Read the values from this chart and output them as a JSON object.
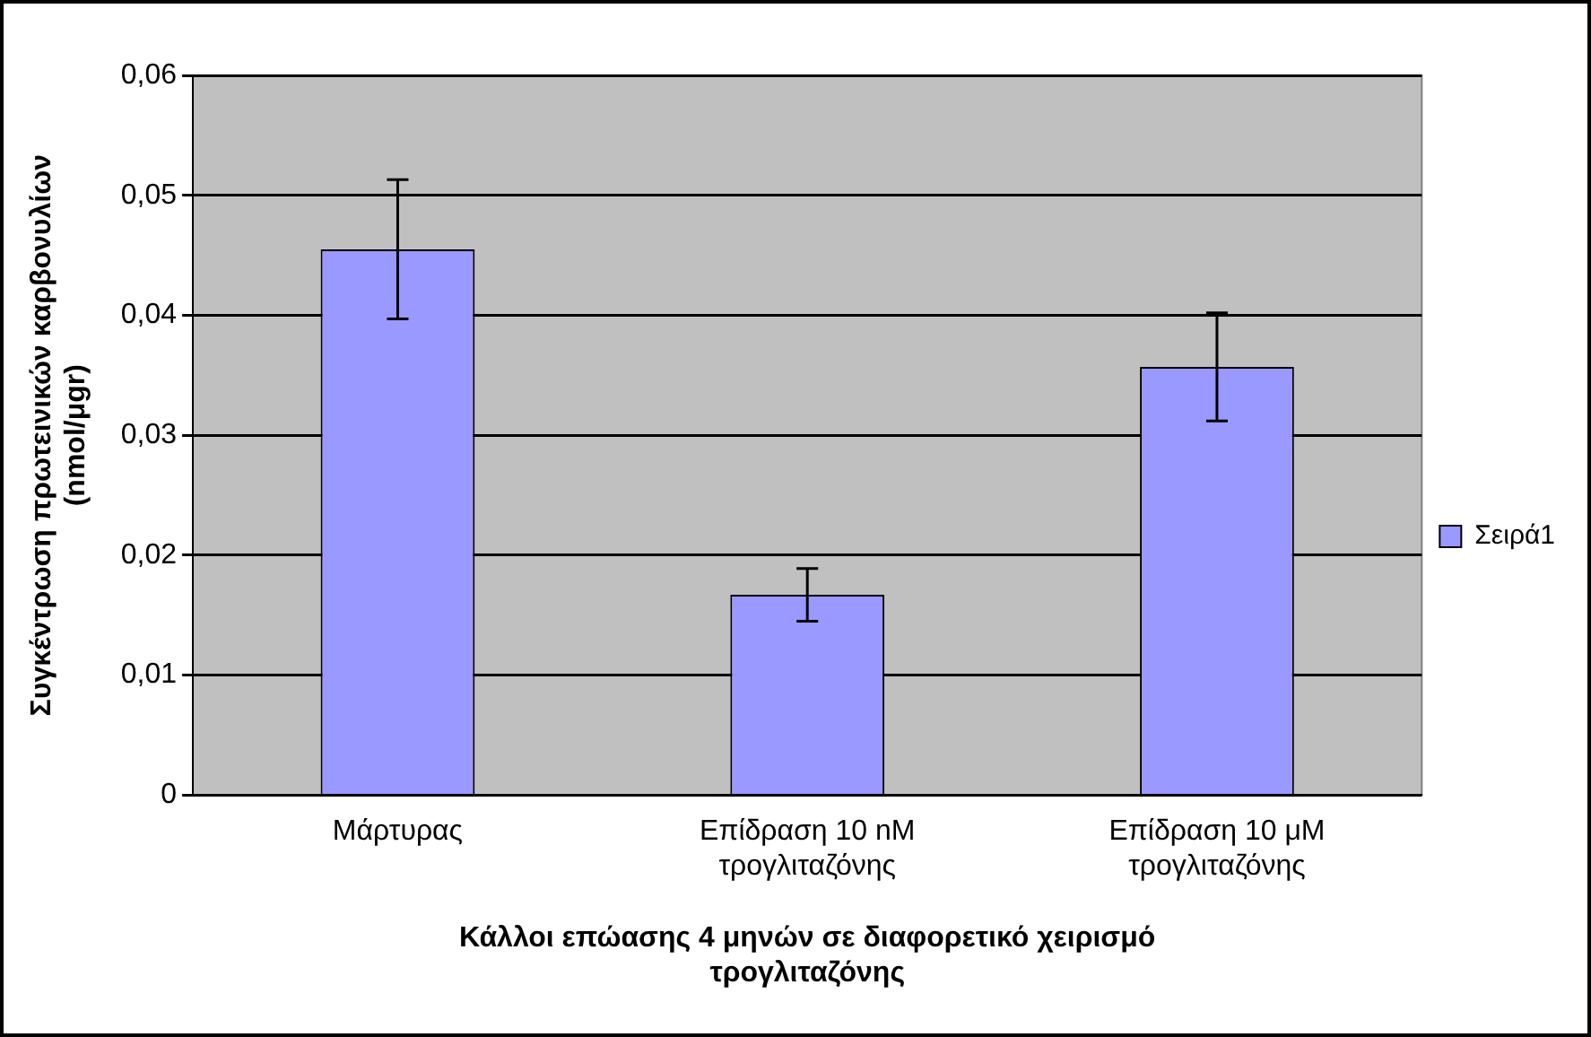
{
  "chart_data": {
    "type": "bar",
    "xlabel": "Κάλλοι επώασης 4 μηνών σε διαφορετικό χειρισμό τρογλιταζόνης",
    "ylabel": "Συγκέντρωση πρωτεινικών καρβονυλίων (nmol/μgr)",
    "categories": [
      "Μάρτυρας",
      "Επίδραση 10 nM τρογλιταζόνης",
      "Επίδραση 10 μM τρογλιταζόνης"
    ],
    "series": [
      {
        "name": "Σειρά1",
        "color": "#9999ff",
        "values": [
          0.0455,
          0.0167,
          0.0357
        ],
        "errors": [
          0.0058,
          0.0022,
          0.0045
        ]
      }
    ],
    "ylim": [
      0,
      0.06
    ],
    "yticks": [
      {
        "value": 0,
        "label": "0"
      },
      {
        "value": 0.01,
        "label": "0,01"
      },
      {
        "value": 0.02,
        "label": "0,02"
      },
      {
        "value": 0.03,
        "label": "0,03"
      },
      {
        "value": 0.04,
        "label": "0,04"
      },
      {
        "value": 0.05,
        "label": "0,05"
      },
      {
        "value": 0.06,
        "label": "0,06"
      }
    ],
    "grid": "y",
    "legend": "right"
  }
}
